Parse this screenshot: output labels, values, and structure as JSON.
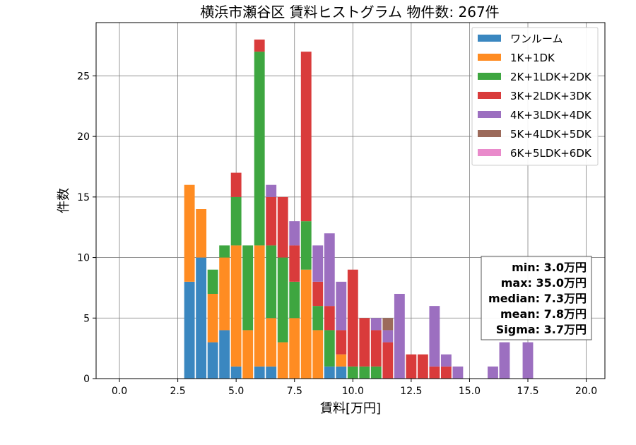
{
  "chart_data": {
    "type": "bar",
    "stacked": true,
    "title": "横浜市瀬谷区 賃料ヒストグラム  物件数: 267件",
    "xlabel": "賃料[万円]",
    "ylabel": "件数",
    "xlim": [
      -1.0,
      20.8
    ],
    "ylim": [
      0,
      29.4
    ],
    "bin_width": 0.45,
    "xticks": [
      0.0,
      2.5,
      5.0,
      7.5,
      10.0,
      12.5,
      15.0,
      17.5,
      20.0
    ],
    "xtick_labels": [
      "0.0",
      "2.5",
      "5.0",
      "7.5",
      "10.0",
      "12.5",
      "15.0",
      "17.5",
      "20.0"
    ],
    "yticks": [
      0,
      5,
      10,
      15,
      20,
      25
    ],
    "ytick_labels": [
      "0",
      "5",
      "10",
      "15",
      "20",
      "25"
    ],
    "grid": true,
    "legend_position": "top-right",
    "bins": [
      3.0,
      3.5,
      4.0,
      4.5,
      5.0,
      5.5,
      6.0,
      6.5,
      7.0,
      7.5,
      8.0,
      8.5,
      9.0,
      9.5,
      10.0,
      10.5,
      11.0,
      11.5,
      12.0,
      12.5,
      13.0,
      13.5,
      14.0,
      14.5,
      15.0,
      15.5,
      16.0,
      16.5,
      17.0,
      17.5
    ],
    "series": [
      {
        "name": "ワンルーム",
        "color": "#3a87c0",
        "values": [
          8,
          10,
          3,
          4,
          1,
          0,
          1,
          1,
          0,
          0,
          0,
          0,
          1,
          1,
          0,
          0,
          0,
          0,
          0,
          0,
          0,
          0,
          0,
          0,
          0,
          0,
          0,
          0,
          0,
          0
        ]
      },
      {
        "name": "1K+1DK",
        "color": "#ff8c22",
        "values": [
          8,
          4,
          4,
          6,
          10,
          4,
          10,
          4,
          3,
          5,
          9,
          4,
          0,
          1,
          0,
          0,
          0,
          0,
          0,
          0,
          0,
          0,
          0,
          0,
          0,
          0,
          0,
          0,
          0,
          0
        ]
      },
      {
        "name": "2K+1LDK+2DK",
        "color": "#3ea640",
        "values": [
          0,
          0,
          2,
          1,
          4,
          7,
          16,
          6,
          7,
          3,
          4,
          2,
          3,
          0,
          1,
          1,
          1,
          0,
          0,
          0,
          0,
          0,
          0,
          0,
          0,
          0,
          0,
          0,
          0,
          0
        ]
      },
      {
        "name": "3K+2LDK+3DK",
        "color": "#d93b3b",
        "values": [
          0,
          0,
          0,
          0,
          2,
          0,
          1,
          4,
          5,
          3,
          14,
          2,
          2,
          2,
          8,
          4,
          3,
          3,
          0,
          2,
          2,
          1,
          1,
          0,
          0,
          0,
          0,
          0,
          0,
          0
        ]
      },
      {
        "name": "4K+3LDK+4DK",
        "color": "#9c6fc0",
        "values": [
          0,
          0,
          0,
          0,
          0,
          0,
          0,
          1,
          0,
          2,
          0,
          3,
          6,
          4,
          0,
          0,
          1,
          1,
          7,
          0,
          0,
          5,
          1,
          1,
          0,
          0,
          1,
          3,
          0,
          3
        ]
      },
      {
        "name": "5K+4LDK+5DK",
        "color": "#9c6a5a",
        "values": [
          0,
          0,
          0,
          0,
          0,
          0,
          0,
          0,
          0,
          0,
          0,
          0,
          0,
          0,
          0,
          0,
          0,
          1,
          0,
          0,
          0,
          0,
          0,
          0,
          0,
          0,
          0,
          0,
          0,
          0
        ]
      },
      {
        "name": "6K+5LDK+6DK",
        "color": "#e98acb",
        "values": [
          0,
          0,
          0,
          0,
          0,
          0,
          0,
          0,
          0,
          0,
          0,
          0,
          0,
          0,
          0,
          0,
          0,
          0,
          0,
          0,
          0,
          0,
          0,
          0,
          0,
          0,
          0,
          0,
          0,
          0
        ]
      }
    ],
    "stats": {
      "min": "min: 3.0万円",
      "max": "max: 35.0万円",
      "median": "median: 7.3万円",
      "mean": "mean: 7.8万円",
      "sigma": "Sigma: 3.7万円"
    }
  }
}
